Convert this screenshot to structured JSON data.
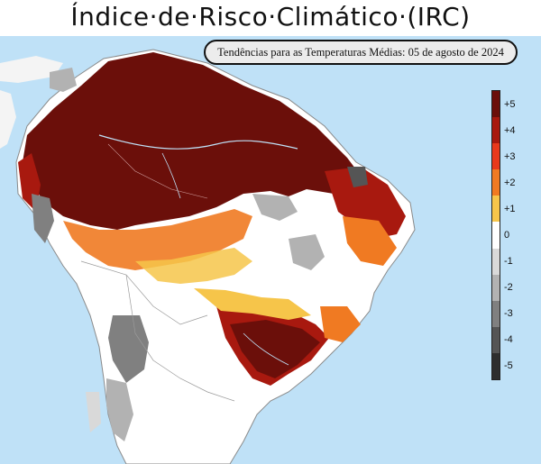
{
  "title": "Índice·de·Risco·Climático·(IRC)",
  "subtitle": "Tendências para as Temperaturas Médias: 05 de agosto de 2024",
  "legend": {
    "items": [
      {
        "label": "+5",
        "color": "#6b0f0a"
      },
      {
        "label": "+4",
        "color": "#a8190f"
      },
      {
        "label": "+3",
        "color": "#e8391c"
      },
      {
        "label": "+2",
        "color": "#f07a22"
      },
      {
        "label": "+1",
        "color": "#f6c54a"
      },
      {
        "label": "0",
        "color": "#ffffff"
      },
      {
        "label": "-1",
        "color": "#d9d9d9"
      },
      {
        "label": "-2",
        "color": "#b2b2b2"
      },
      {
        "label": "-3",
        "color": "#808080"
      },
      {
        "label": "-4",
        "color": "#555555"
      },
      {
        "label": "-5",
        "color": "#2e2e2e"
      }
    ]
  },
  "colors": {
    "ocean": "#bfe1f7",
    "land_outside": "#f4f4f4",
    "borders": "#9a9a9a"
  }
}
